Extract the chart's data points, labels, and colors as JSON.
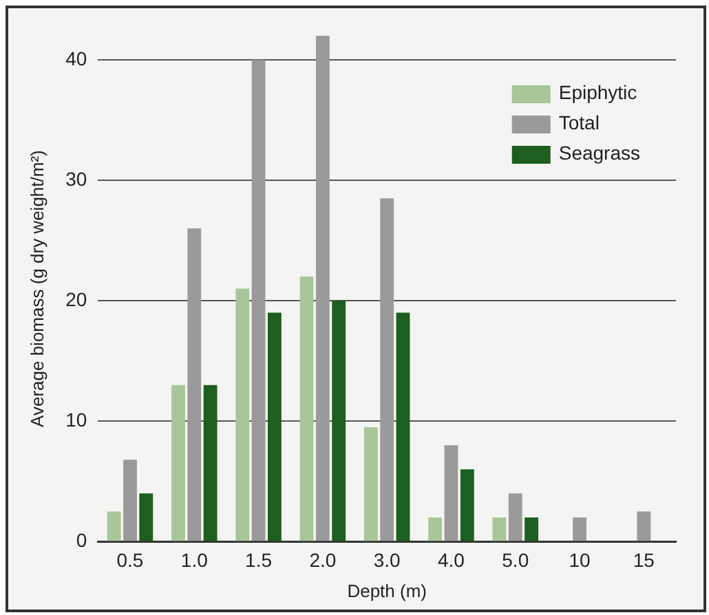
{
  "chart_data": {
    "type": "bar",
    "xlabel": "Depth (m)",
    "ylabel": "Average biomass (g dry weight/m²)",
    "categories": [
      "0.5",
      "1.0",
      "1.5",
      "2.0",
      "3.0",
      "4.0",
      "5.0",
      "10",
      "15"
    ],
    "series": [
      {
        "name": "Epiphytic",
        "color": "#a9c59a",
        "values": [
          2.5,
          13,
          21,
          22,
          9.5,
          2,
          2,
          null,
          null
        ]
      },
      {
        "name": "Total",
        "color": "#9a9a9a",
        "values": [
          6.8,
          26,
          40,
          42,
          28.5,
          8,
          4,
          2,
          2.5
        ]
      },
      {
        "name": "Seagrass",
        "color": "#1e5e1e",
        "values": [
          4,
          13,
          19,
          20,
          19,
          6,
          2,
          null,
          null
        ]
      }
    ],
    "ylim": [
      0,
      42
    ],
    "yticks": [
      0,
      10,
      20,
      30,
      40
    ],
    "grid": "y",
    "legend": "top right"
  }
}
